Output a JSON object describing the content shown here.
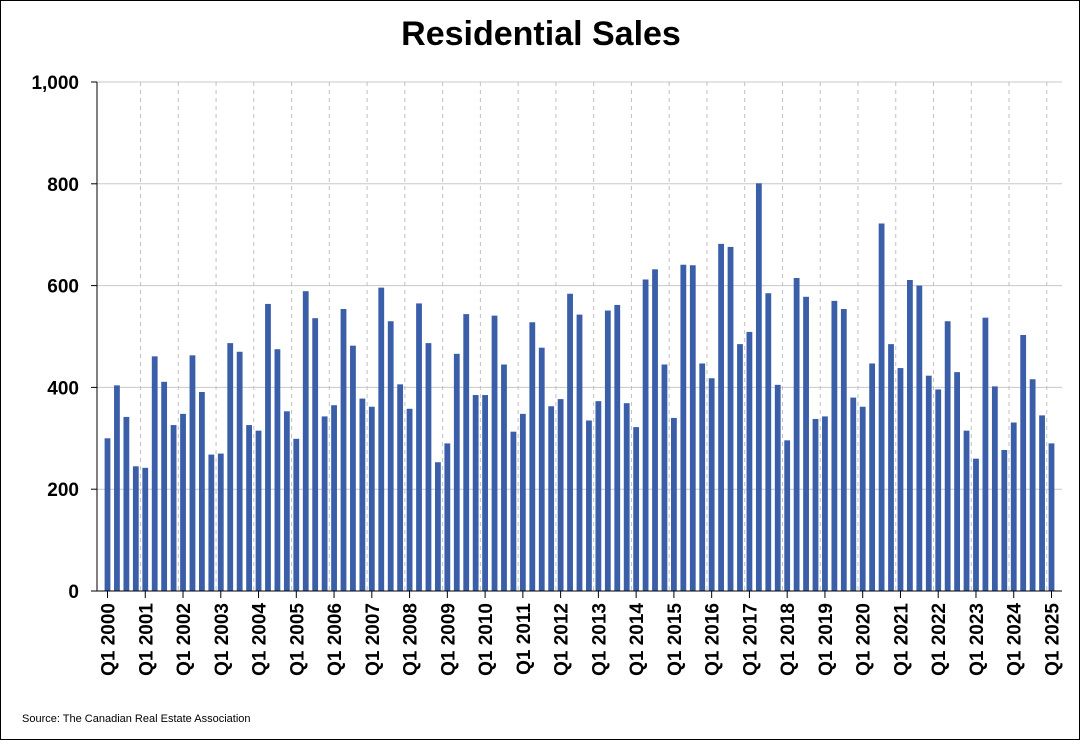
{
  "chart_data": {
    "type": "bar",
    "title": "Residential Sales",
    "source": "Source: The Canadian Real Estate Association",
    "ylim": [
      0,
      1000
    ],
    "yticks": [
      0,
      200,
      400,
      600,
      800,
      1000
    ],
    "ytick_labels": [
      "0",
      "200",
      "400",
      "600",
      "800",
      "1,000"
    ],
    "grid": {
      "horizontal": "solid",
      "vertical": "dashed"
    },
    "bar_color": "#3a5fa8",
    "xtick_labels": [
      "Q1 2000",
      "Q1 2001",
      "Q1 2002",
      "Q1 2003",
      "Q1 2004",
      "Q1 2005",
      "Q1 2006",
      "Q1 2007",
      "Q1 2008",
      "Q1 2009",
      "Q1 2010",
      "Q1 2011",
      "Q1 2012",
      "Q1 2013",
      "Q1 2014",
      "Q1 2015",
      "Q1 2016",
      "Q1 2017",
      "Q1 2018",
      "Q1 2019",
      "Q1 2020",
      "Q1 2021",
      "Q1 2022",
      "Q1 2023",
      "Q1 2024",
      "Q1 2025"
    ],
    "categories": [
      "Q1 2000",
      "Q2 2000",
      "Q3 2000",
      "Q4 2000",
      "Q1 2001",
      "Q2 2001",
      "Q3 2001",
      "Q4 2001",
      "Q1 2002",
      "Q2 2002",
      "Q3 2002",
      "Q4 2002",
      "Q1 2003",
      "Q2 2003",
      "Q3 2003",
      "Q4 2003",
      "Q1 2004",
      "Q2 2004",
      "Q3 2004",
      "Q4 2004",
      "Q1 2005",
      "Q2 2005",
      "Q3 2005",
      "Q4 2005",
      "Q1 2006",
      "Q2 2006",
      "Q3 2006",
      "Q4 2006",
      "Q1 2007",
      "Q2 2007",
      "Q3 2007",
      "Q4 2007",
      "Q1 2008",
      "Q2 2008",
      "Q3 2008",
      "Q4 2008",
      "Q1 2009",
      "Q2 2009",
      "Q3 2009",
      "Q4 2009",
      "Q1 2010",
      "Q2 2010",
      "Q3 2010",
      "Q4 2010",
      "Q1 2011",
      "Q2 2011",
      "Q3 2011",
      "Q4 2011",
      "Q1 2012",
      "Q2 2012",
      "Q3 2012",
      "Q4 2012",
      "Q1 2013",
      "Q2 2013",
      "Q3 2013",
      "Q4 2013",
      "Q1 2014",
      "Q2 2014",
      "Q3 2014",
      "Q4 2014",
      "Q1 2015",
      "Q2 2015",
      "Q3 2015",
      "Q4 2015",
      "Q1 2016",
      "Q2 2016",
      "Q3 2016",
      "Q4 2016",
      "Q1 2017",
      "Q2 2017",
      "Q3 2017",
      "Q4 2017",
      "Q1 2018",
      "Q2 2018",
      "Q3 2018",
      "Q4 2018",
      "Q1 2019",
      "Q2 2019",
      "Q3 2019",
      "Q4 2019",
      "Q1 2020",
      "Q2 2020",
      "Q3 2020",
      "Q4 2020",
      "Q1 2021",
      "Q2 2021",
      "Q3 2021",
      "Q4 2021",
      "Q1 2022",
      "Q2 2022",
      "Q3 2022",
      "Q4 2022",
      "Q1 2023",
      "Q2 2023",
      "Q3 2023",
      "Q4 2023",
      "Q1 2024",
      "Q2 2024",
      "Q3 2024",
      "Q4 2024",
      "Q1 2025"
    ],
    "values": [
      300,
      404,
      342,
      245,
      242,
      461,
      411,
      326,
      348,
      463,
      391,
      268,
      270,
      487,
      470,
      326,
      315,
      564,
      475,
      353,
      299,
      589,
      536,
      343,
      365,
      554,
      482,
      378,
      362,
      596,
      530,
      406,
      358,
      565,
      487,
      253,
      290,
      466,
      544,
      385,
      385,
      541,
      445,
      313,
      348,
      528,
      478,
      363,
      377,
      584,
      543,
      335,
      373,
      551,
      562,
      369,
      322,
      612,
      632,
      445,
      340,
      641,
      640,
      447,
      418,
      682,
      676,
      485,
      509,
      801,
      585,
      405,
      296,
      615,
      578,
      338,
      343,
      570,
      554,
      380,
      362,
      447,
      722,
      485,
      438,
      611,
      600,
      423,
      396,
      530,
      430,
      315,
      260,
      537,
      402,
      277,
      331,
      503,
      416,
      345,
      290
    ]
  }
}
